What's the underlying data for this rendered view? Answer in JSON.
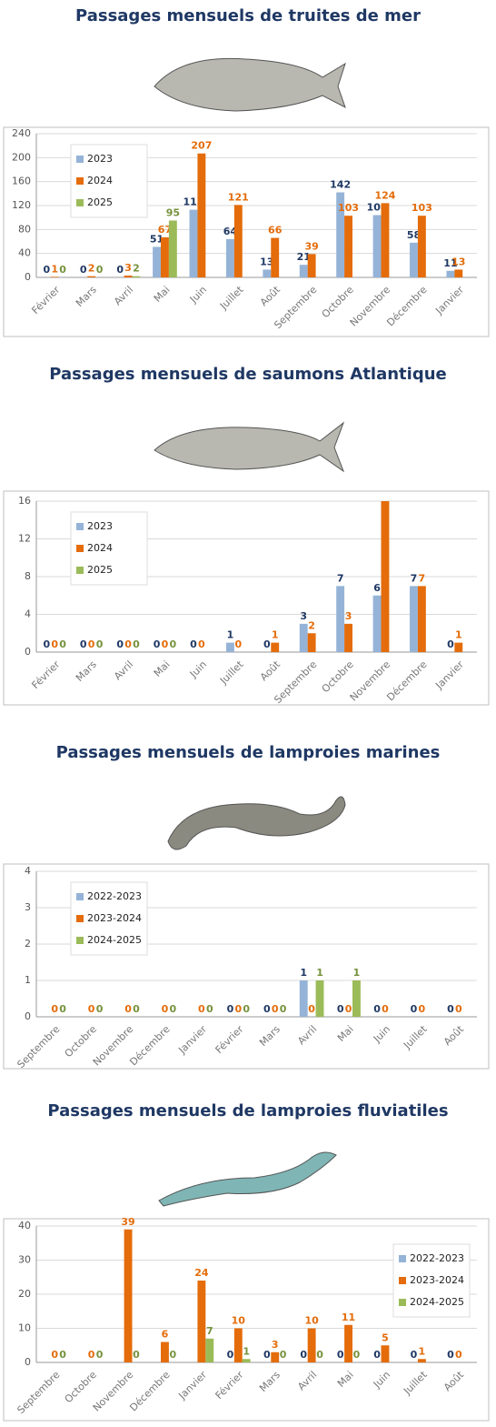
{
  "chart_data": [
    {
      "type": "bar",
      "title": "Passages mensuels de truites de mer",
      "categories": [
        "Février",
        "Mars",
        "Avril",
        "Mai",
        "Juin",
        "Juillet",
        "Août",
        "Septembre",
        "Octobre",
        "Novembre",
        "Décembre",
        "Janvier"
      ],
      "series": [
        {
          "name": "2023",
          "color": "#95b3d7",
          "label_color": "#1f3864",
          "values": [
            0,
            0,
            0,
            51,
            113,
            64,
            13,
            21,
            142,
            104,
            58,
            11
          ]
        },
        {
          "name": "2024",
          "color": "#e46c0a",
          "label_color": "#e46c0a",
          "values": [
            1,
            2,
            3,
            67,
            207,
            121,
            66,
            39,
            103,
            124,
            103,
            13
          ]
        },
        {
          "name": "2025",
          "color": "#9bbb59",
          "label_color": "#76923c",
          "values": [
            0,
            0,
            2,
            95,
            null,
            null,
            null,
            null,
            null,
            null,
            null,
            null
          ]
        }
      ],
      "ylim": [
        0,
        240
      ],
      "yticks": [
        0,
        40,
        80,
        120,
        160,
        200,
        240
      ],
      "grid": true,
      "legend": "top-left"
    },
    {
      "type": "bar",
      "title": "Passages mensuels de saumons Atlantique",
      "categories": [
        "Février",
        "Mars",
        "Avril",
        "Mai",
        "Juin",
        "Juillet",
        "Août",
        "Septembre",
        "Octobre",
        "Novembre",
        "Décembre",
        "Janvier"
      ],
      "series": [
        {
          "name": "2023",
          "color": "#95b3d7",
          "label_color": "#1f3864",
          "values": [
            0,
            0,
            0,
            0,
            0,
            1,
            0,
            3,
            7,
            6,
            7,
            0
          ]
        },
        {
          "name": "2024",
          "color": "#e46c0a",
          "label_color": "#e46c0a",
          "values": [
            0,
            0,
            0,
            0,
            0,
            0,
            1,
            2,
            3,
            16,
            7,
            1
          ],
          "value_labels": [
            "0",
            "0",
            "0",
            "0",
            "0",
            "0",
            "1",
            "2",
            "3",
            null,
            "7",
            "1"
          ]
        },
        {
          "name": "2025",
          "color": "#9bbb59",
          "label_color": "#76923c",
          "values": [
            0,
            0,
            0,
            0,
            null,
            null,
            null,
            null,
            null,
            null,
            null,
            null
          ]
        }
      ],
      "ylim": [
        0,
        16
      ],
      "yticks": [
        0,
        4,
        8,
        12,
        16
      ],
      "grid": true,
      "legend": "top-left"
    },
    {
      "type": "bar",
      "title": "Passages mensuels de lamproies marines",
      "categories": [
        "Septembre",
        "Octobre",
        "Novembre",
        "Décembre",
        "Janvier",
        "Février",
        "Mars",
        "Avril",
        "Mai",
        "Juin",
        "Juillet",
        "Août"
      ],
      "series": [
        {
          "name": "2022-2023",
          "color": "#95b3d7",
          "label_color": "#1f3864",
          "values": [
            null,
            null,
            null,
            null,
            null,
            0,
            0,
            1,
            0,
            0,
            0,
            0
          ]
        },
        {
          "name": "2023-2024",
          "color": "#e46c0a",
          "label_color": "#e46c0a",
          "values": [
            0,
            0,
            0,
            0,
            0,
            0,
            0,
            0,
            0,
            0,
            0,
            0
          ]
        },
        {
          "name": "2024-2025",
          "color": "#9bbb59",
          "label_color": "#76923c",
          "values": [
            0,
            0,
            0,
            0,
            0,
            0,
            0,
            1,
            1,
            null,
            null,
            null
          ]
        }
      ],
      "ylim": [
        0,
        4
      ],
      "yticks": [
        0,
        1,
        2,
        3,
        4
      ],
      "grid": true,
      "legend": "top-left"
    },
    {
      "type": "bar",
      "title": "Passages mensuels de lamproies fluviatiles",
      "categories": [
        "Septembre",
        "Octobre",
        "Novembre",
        "Décembre",
        "Janvier",
        "Février",
        "Mars",
        "Avril",
        "Mai",
        "Juin",
        "Juillet",
        "Août"
      ],
      "series": [
        {
          "name": "2022-2023",
          "color": "#95b3d7",
          "label_color": "#1f3864",
          "values": [
            null,
            null,
            null,
            null,
            null,
            0,
            0,
            0,
            0,
            0,
            0,
            0
          ]
        },
        {
          "name": "2023-2024",
          "color": "#e46c0a",
          "label_color": "#e46c0a",
          "values": [
            0,
            0,
            39,
            6,
            24,
            10,
            3,
            10,
            11,
            5,
            1,
            0
          ]
        },
        {
          "name": "2024-2025",
          "color": "#9bbb59",
          "label_color": "#76923c",
          "values": [
            0,
            0,
            0,
            0,
            7,
            1,
            0,
            0,
            0,
            null,
            null,
            null
          ]
        }
      ],
      "ylim": [
        0,
        40
      ],
      "yticks": [
        0,
        10,
        20,
        30,
        40
      ],
      "grid": true,
      "legend": "top-right"
    }
  ]
}
